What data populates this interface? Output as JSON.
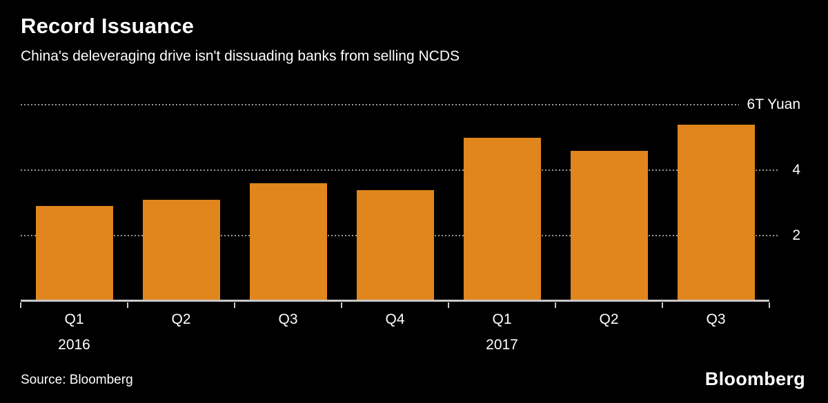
{
  "colors": {
    "background": "#000000",
    "bar": "#E0861D",
    "text": "#FFFFFF",
    "gridline": "#9B9B9B",
    "axis": "#C9C9C9"
  },
  "chart_data": {
    "type": "bar",
    "title": "Record Issuance",
    "subtitle": "China's deleveraging drive isn't dissuading banks from selling NCDS",
    "categories": [
      "Q1",
      "Q2",
      "Q3",
      "Q4",
      "Q1",
      "Q2",
      "Q3"
    ],
    "year_labels": [
      {
        "slot": 0,
        "label": "2016"
      },
      {
        "slot": 4,
        "label": "2017"
      }
    ],
    "values": [
      2.9,
      3.1,
      3.6,
      3.4,
      5.0,
      4.6,
      5.4
    ],
    "unit": "T Yuan",
    "ylabel": "",
    "xlabel": "",
    "ylim": [
      0,
      6
    ],
    "yticks": [
      2,
      4,
      6
    ],
    "ytick_labels": [
      "2",
      "4",
      "6T Yuan"
    ],
    "grid": "horizontal-dotted",
    "legend": "none"
  },
  "footer": {
    "source": "Source: Bloomberg",
    "logo": "Bloomberg"
  }
}
